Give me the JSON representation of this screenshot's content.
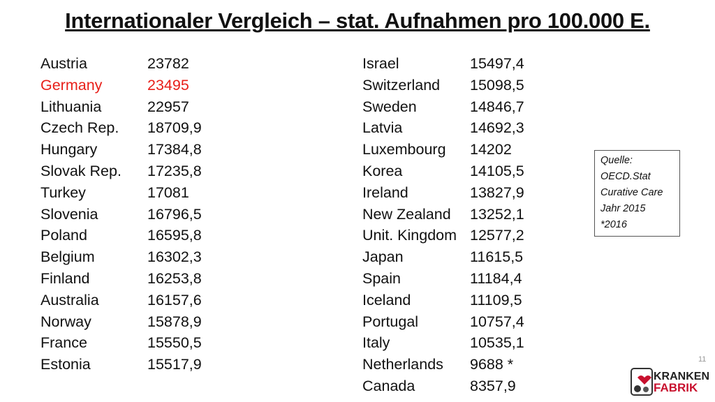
{
  "title": "Internationaler Vergleich – stat. Aufnahmen pro 100.000 E.",
  "columns": [
    {
      "rows": [
        {
          "name": "Austria",
          "value": "23782"
        },
        {
          "name": "Germany",
          "value": "23495",
          "color": "#e8201a"
        },
        {
          "name": "Lithuania",
          "value": "22957"
        },
        {
          "name": "Czech Rep.",
          "value": "18709,9"
        },
        {
          "name": "Hungary",
          "value": "17384,8"
        },
        {
          "name": "Slovak Rep.",
          "value": "17235,8"
        },
        {
          "name": "Turkey",
          "value": "17081"
        },
        {
          "name": "Slovenia",
          "value": "16796,5"
        },
        {
          "name": "Poland",
          "value": "16595,8"
        },
        {
          "name": "Belgium",
          "value": "16302,3"
        },
        {
          "name": "Finland",
          "value": "16253,8"
        },
        {
          "name": "Australia",
          "value": "16157,6"
        },
        {
          "name": "Norway",
          "value": "15878,9"
        },
        {
          "name": "France",
          "value": "15550,5"
        },
        {
          "name": "Estonia",
          "value": "15517,9"
        }
      ]
    },
    {
      "rows": [
        {
          "name": "Israel",
          "value": "15497,4"
        },
        {
          "name": "Switzerland",
          "value": "15098,5"
        },
        {
          "name": "Sweden",
          "value": "14846,7"
        },
        {
          "name": "Latvia",
          "value": "14692,3"
        },
        {
          "name": "Luxembourg",
          "value": "14202"
        },
        {
          "name": "Korea",
          "value": "14105,5"
        },
        {
          "name": "Ireland",
          "value": "13827,9"
        },
        {
          "name": "New Zealand",
          "value": "13252,1"
        },
        {
          "name": "Unit. Kingdom",
          "value": "12577,2"
        },
        {
          "name": "Japan",
          "value": "11615,5"
        },
        {
          "name": "Spain",
          "value": "11184,4"
        },
        {
          "name": "Iceland",
          "value": "11109,5"
        },
        {
          "name": "Portugal",
          "value": "10757,4"
        },
        {
          "name": "Italy",
          "value": "10535,1"
        },
        {
          "name": "Netherlands",
          "value": "9688 *"
        },
        {
          "name": "Canada",
          "value": "8357,9"
        }
      ]
    }
  ],
  "source": [
    "Quelle:",
    "OECD.Stat",
    "Curative Care",
    "Jahr 2015",
    "*2016"
  ],
  "page_number": "11",
  "logo": {
    "top": "KRANKEN",
    "bottom": "FABRIK"
  }
}
